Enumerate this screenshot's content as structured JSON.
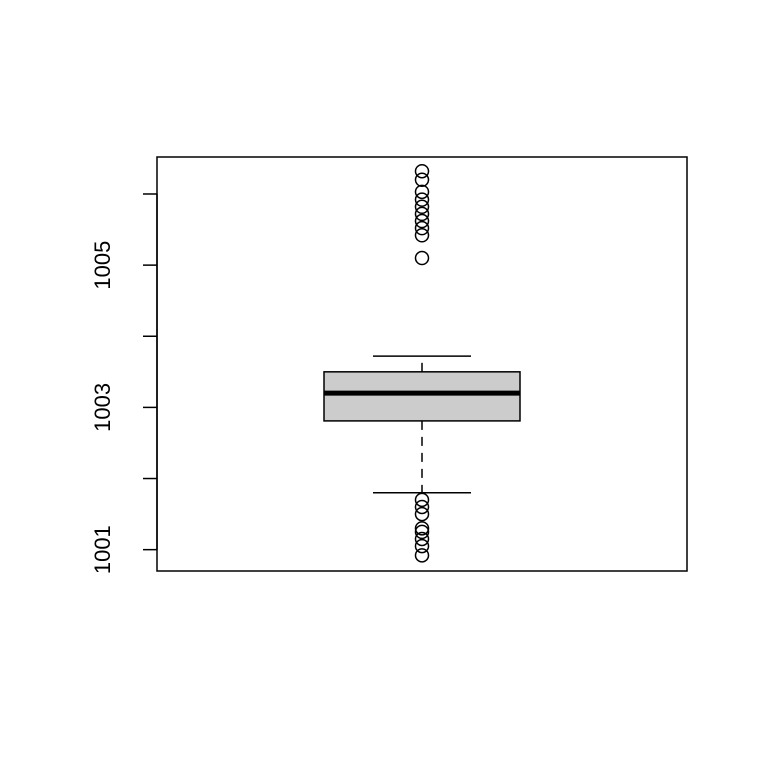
{
  "chart_data": {
    "type": "box",
    "title": "",
    "xlabel": "",
    "ylabel": "",
    "ylim": [
      1000.7,
      1006.52
    ],
    "yticks": [
      1001,
      1002,
      1003,
      1004,
      1005,
      1006
    ],
    "ytick_labels": [
      "1001",
      "",
      "1003",
      "",
      "1005",
      ""
    ],
    "box": {
      "min": 1001.8,
      "q1": 1002.81,
      "median": 1003.2,
      "q3": 1003.5,
      "max": 1003.72
    },
    "outliers": [
      1001.7,
      1001.6,
      1001.5,
      1001.3,
      1001.25,
      1001.15,
      1001.05,
      1000.92,
      1005.1,
      1005.42,
      1005.52,
      1005.62,
      1005.72,
      1005.82,
      1005.92,
      1006.03,
      1006.2,
      1006.32
    ],
    "colors": {
      "box_fill": "#cccccc",
      "stroke": "#000000",
      "background": "#ffffff"
    }
  }
}
